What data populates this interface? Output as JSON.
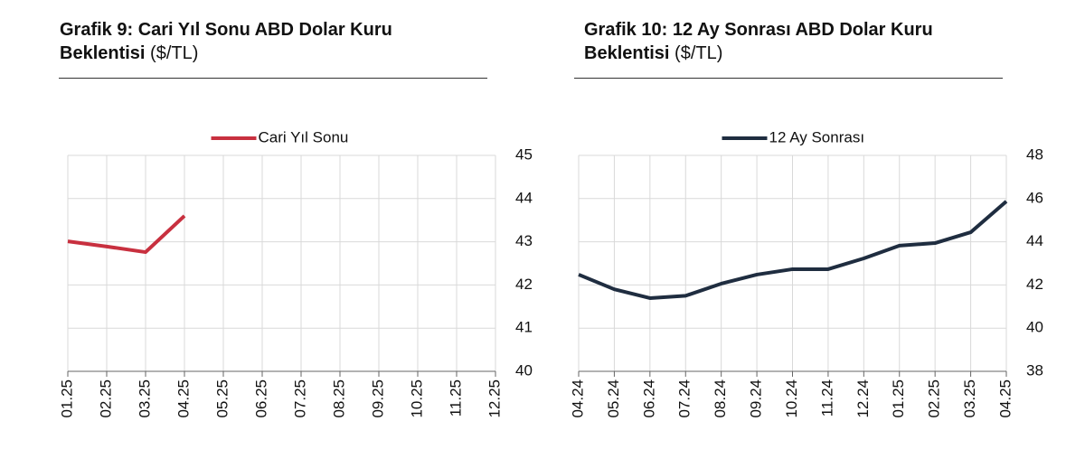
{
  "chart_data": [
    {
      "type": "line",
      "title": "Grafik 9: Cari Yıl Sonu ABD Dolar Kuru Beklentisi",
      "unit": "($/TL)",
      "categories": [
        "01.25",
        "02.25",
        "03.25",
        "04.25",
        "05.25",
        "06.25",
        "07.25",
        "08.25",
        "09.25",
        "10.25",
        "11.25",
        "12.25"
      ],
      "series": [
        {
          "name": "Cari Yıl Sonu",
          "color": "#c8303f",
          "values": [
            43.01,
            42.89,
            42.76,
            43.6,
            null,
            null,
            null,
            null,
            null,
            null,
            null,
            null
          ]
        }
      ],
      "ylim": [
        40,
        45
      ],
      "yticks": [
        40,
        41,
        42,
        43,
        44,
        45
      ],
      "grid": true,
      "legend": "top",
      "y_axis_side": "right"
    },
    {
      "type": "line",
      "title": "Grafik 10: 12 Ay Sonrası ABD Dolar Kuru Beklentisi",
      "unit": "($/TL)",
      "categories": [
        "04.24",
        "05.24",
        "06.24",
        "07.24",
        "08.24",
        "09.24",
        "10.24",
        "11.24",
        "12.24",
        "01.25",
        "02.25",
        "03.25",
        "04.25"
      ],
      "series": [
        {
          "name": "12 Ay Sonrası",
          "color": "#1f2d40",
          "values": [
            42.48,
            41.8,
            41.39,
            41.5,
            42.06,
            42.48,
            42.73,
            42.73,
            43.23,
            43.82,
            43.94,
            44.44,
            45.87
          ]
        }
      ],
      "ylim": [
        38,
        48
      ],
      "yticks": [
        38,
        40,
        42,
        44,
        46,
        48
      ],
      "grid": true,
      "legend": "top",
      "y_axis_side": "right"
    }
  ]
}
